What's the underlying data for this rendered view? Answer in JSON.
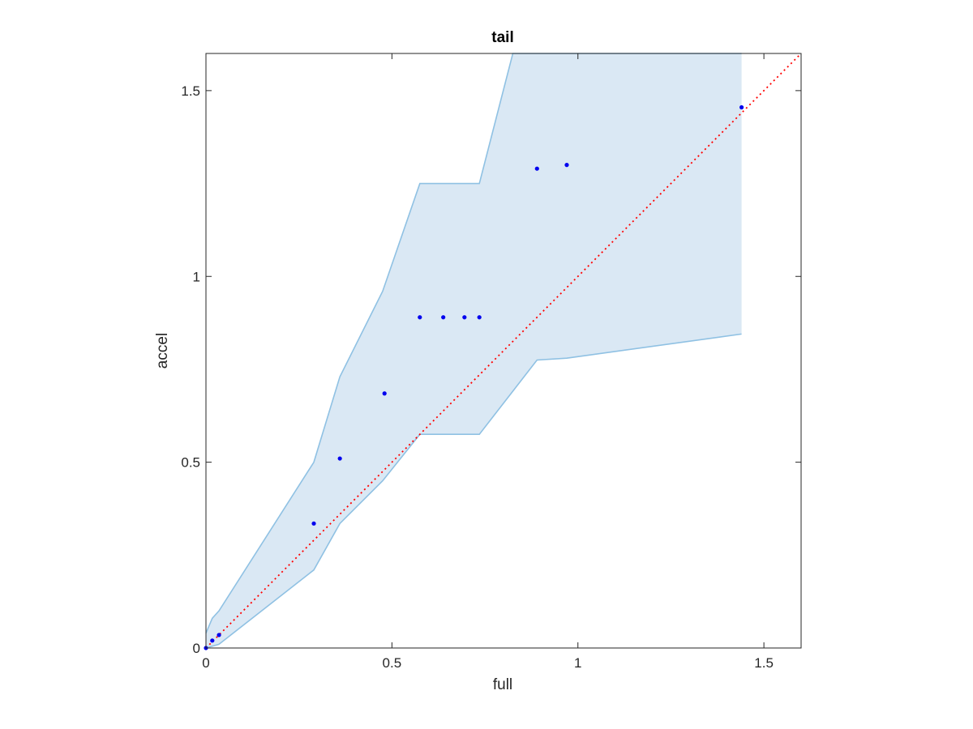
{
  "chart_data": {
    "type": "scatter",
    "title": "tail",
    "xlabel": "full",
    "ylabel": "accel",
    "xlim": [
      0,
      1.6
    ],
    "ylim": [
      0,
      1.6
    ],
    "xticks": [
      0,
      0.5,
      1,
      1.5
    ],
    "xtick_labels": [
      "0",
      "0.5",
      "1",
      "1.5"
    ],
    "yticks": [
      0,
      0.5,
      1,
      1.5
    ],
    "ytick_labels": [
      "0",
      "0.5",
      "1",
      "1.5"
    ],
    "grid": false,
    "box": true,
    "points": {
      "x": [
        0,
        0.017,
        0.035,
        0.29,
        0.36,
        0.48,
        0.575,
        0.638,
        0.695,
        0.735,
        0.89,
        0.97,
        1.44
      ],
      "y": [
        0,
        0.02,
        0.035,
        0.335,
        0.51,
        0.685,
        0.89,
        0.89,
        0.89,
        0.89,
        1.29,
        1.3,
        1.455
      ]
    },
    "band": {
      "upper": {
        "x": [
          0,
          0.017,
          0.035,
          0.29,
          0.36,
          0.475,
          0.575,
          0.735,
          0.825,
          1.44
        ],
        "y": [
          0.04,
          0.08,
          0.1,
          0.5,
          0.73,
          0.96,
          1.25,
          1.25,
          1.6,
          1.6
        ]
      },
      "lower": {
        "x": [
          0,
          0.035,
          0.29,
          0.36,
          0.475,
          0.575,
          0.735,
          0.89,
          0.97,
          1.44
        ],
        "y": [
          0,
          0.01,
          0.21,
          0.335,
          0.45,
          0.575,
          0.575,
          0.775,
          0.78,
          0.845
        ]
      }
    },
    "reference_line": {
      "x": [
        0,
        1.6
      ],
      "y": [
        0,
        1.6
      ]
    },
    "colors": {
      "band_fill": "#dae8f4",
      "band_edge": "#8fc1e3",
      "points": "#0000ee",
      "reference": "#ff0000",
      "axes": "#262626"
    }
  }
}
